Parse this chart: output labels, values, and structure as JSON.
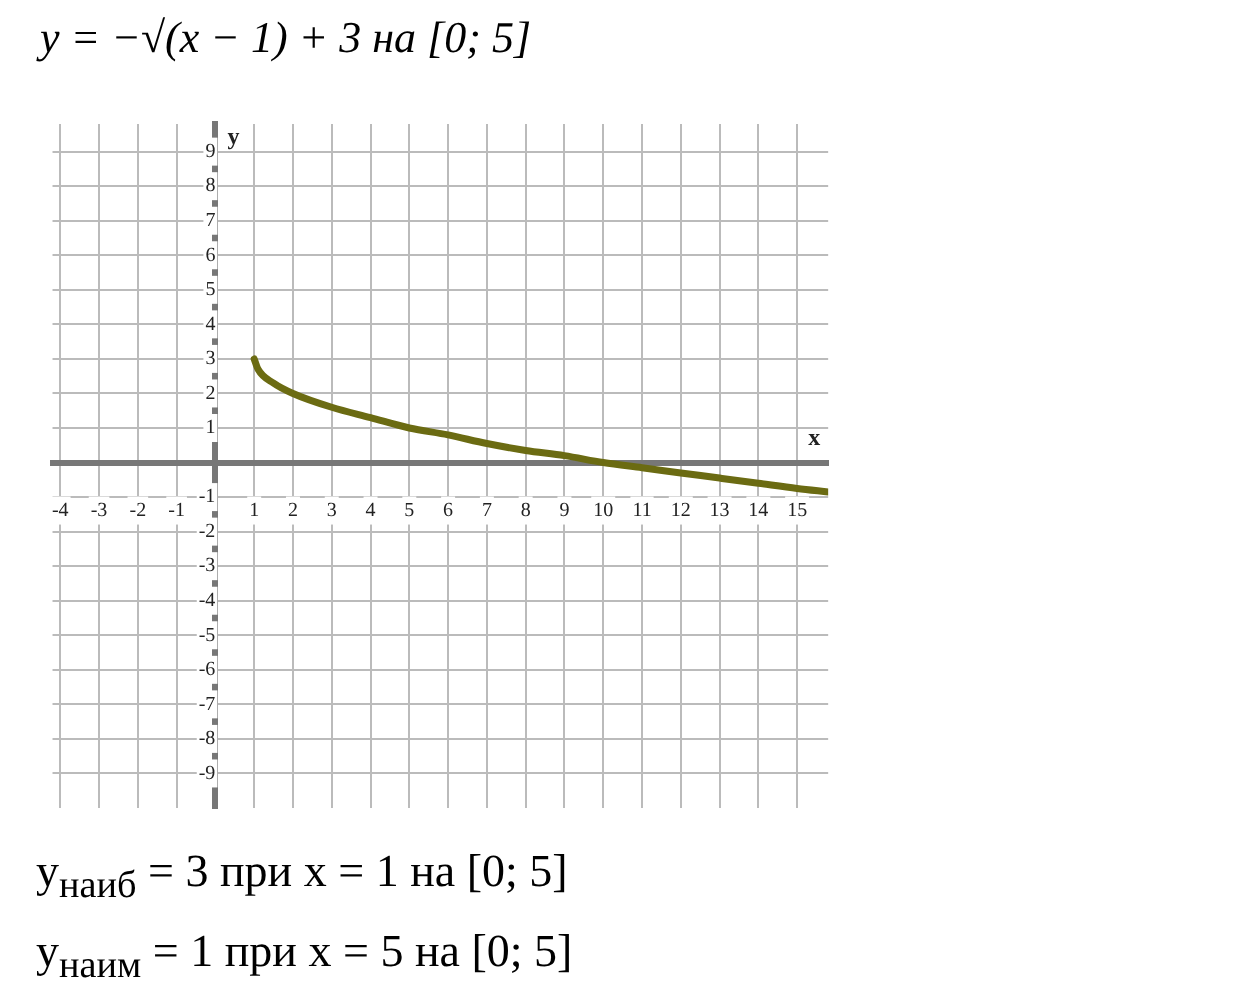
{
  "chart_data": {
    "type": "line",
    "title": "y = −√(x − 1) + 3  на  [0; 5]",
    "xlabel": "x",
    "ylabel": "y",
    "x": [
      1,
      1.1,
      1.5,
      2,
      3,
      4,
      5,
      6,
      7,
      8,
      9,
      10,
      11,
      12,
      13,
      14,
      15,
      15.8
    ],
    "series": [
      {
        "color": "#6b6b12",
        "values": [
          3,
          2.7,
          2.3,
          2,
          1.6,
          1.3,
          1,
          0.8,
          0.55,
          0.35,
          0.2,
          0,
          -0.15,
          -0.3,
          -0.45,
          -0.6,
          -0.75,
          -0.85
        ]
      }
    ],
    "xlim": [
      -4.2,
      15.8
    ],
    "ylim": [
      -10,
      9.8
    ],
    "xticks": [
      -4,
      -3,
      -2,
      -1,
      1,
      2,
      3,
      4,
      5,
      6,
      7,
      8,
      9,
      10,
      11,
      12,
      13,
      14,
      15
    ],
    "yticks": [
      -9,
      -8,
      -7,
      -6,
      -5,
      -4,
      -3,
      -2,
      -1,
      1,
      2,
      3,
      4,
      5,
      6,
      7,
      8,
      9
    ],
    "grid": true,
    "legend": false,
    "marker": "none",
    "line_style": "solid",
    "annotations": [
      "y$_{наиб}$ = 3   при x = 1  на  [0; 5]",
      "y$_{наим}$ = 1  при  x = 5  на  [0; 5]"
    ]
  }
}
